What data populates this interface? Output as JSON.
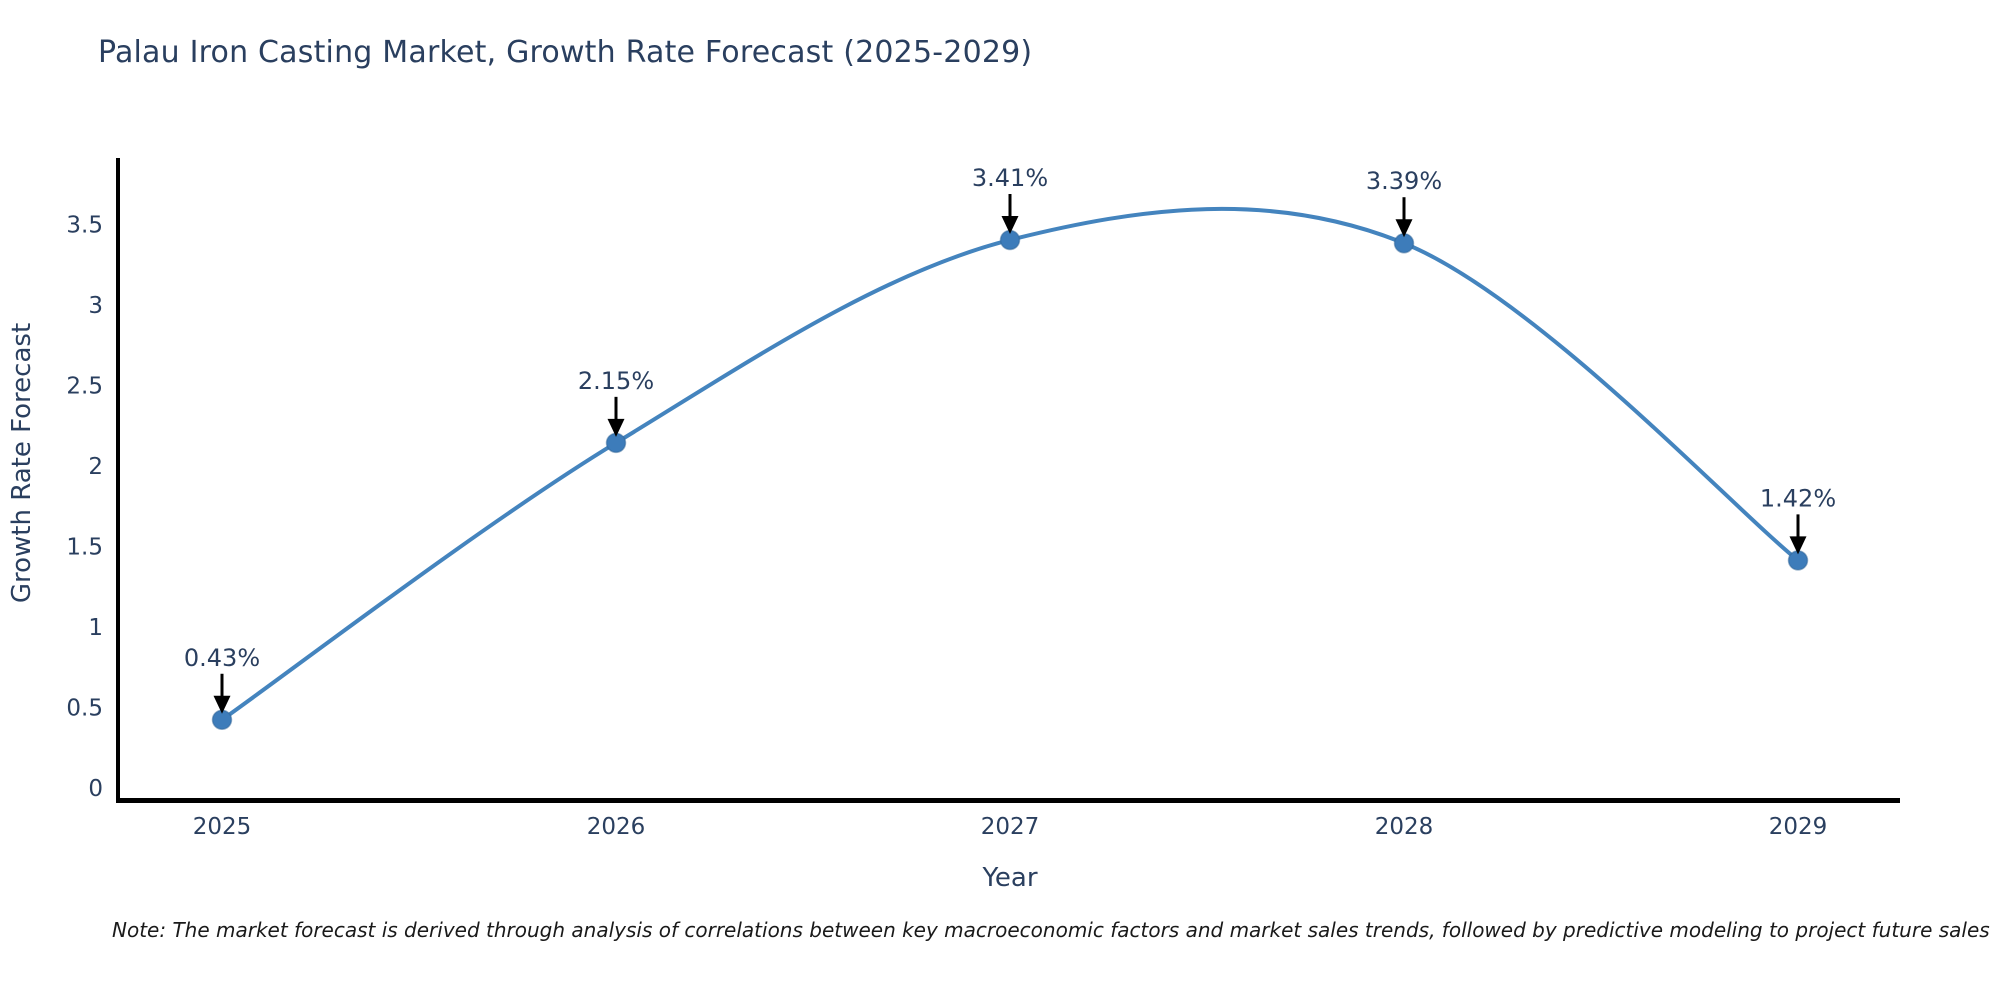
{
  "title": "Palau Iron Casting Market, Growth Rate Forecast (2025-2029)",
  "note": "Note: The market forecast is derived through analysis of correlations between key macroeconomic factors and market sales trends, followed by predictive modeling to project future sales",
  "chart_data": {
    "type": "line",
    "title": "Palau Iron Casting Market, Growth Rate Forecast (2025-2029)",
    "xlabel": "Year",
    "ylabel": "Growth Rate Forecast",
    "x": [
      2025,
      2026,
      2027,
      2028,
      2029
    ],
    "values": [
      0.43,
      2.15,
      3.41,
      3.39,
      1.42
    ],
    "data_labels": [
      "0.43%",
      "2.15%",
      "3.41%",
      "3.39%",
      "1.42%"
    ],
    "line_shape": "spline",
    "markers": true,
    "xtick_labels": [
      "2025",
      "2026",
      "2027",
      "2028",
      "2029"
    ],
    "yticks": [
      0,
      0.5,
      1,
      1.5,
      2,
      2.5,
      3,
      3.5
    ],
    "ytick_labels": [
      "0",
      "0.5",
      "1",
      "1.5",
      "2",
      "2.5",
      "3",
      "3.5"
    ],
    "xlim": [
      2024.74,
      2029.27
    ],
    "ylim": [
      -0.07,
      3.91
    ],
    "grid": false,
    "legend": "none",
    "annotations_style": "value label with black down arrow to each point",
    "colors": {
      "line": "#4484be",
      "marker": "#3d7cba",
      "marker_edge": "#2f6496",
      "arrow": "#000000",
      "text": "#2a3f5f",
      "axis_line": "#000000",
      "note_text": "#1a1a1a",
      "background": "#ffffff"
    }
  }
}
